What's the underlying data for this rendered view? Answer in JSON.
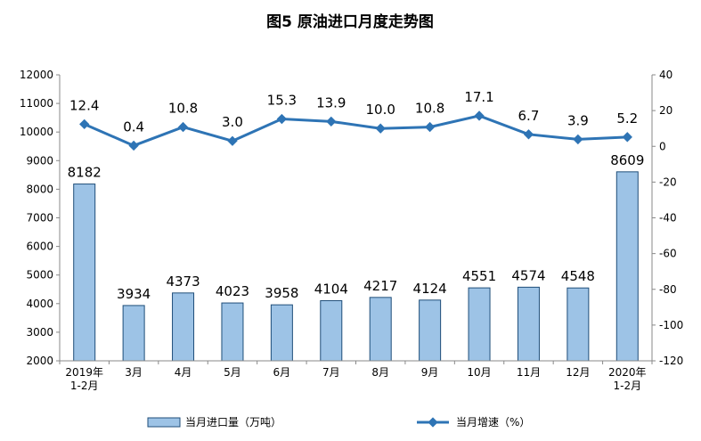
{
  "chart_data": {
    "type": "bar+line",
    "title": "图5  原油进口月度走势图",
    "categories": [
      "2019年\n1-2月",
      "3月",
      "4月",
      "5月",
      "6月",
      "7月",
      "8月",
      "9月",
      "10月",
      "11月",
      "12月",
      "2020年\n1-2月"
    ],
    "series": [
      {
        "name": "当月进口量（万吨）",
        "type": "bar",
        "axis": "left",
        "color": "#9DC3E6",
        "values": [
          8182,
          3934,
          4373,
          4023,
          3958,
          4104,
          4217,
          4124,
          4551,
          4574,
          4548,
          8609
        ]
      },
      {
        "name": "当月增速（%）",
        "type": "line",
        "axis": "right",
        "color": "#2E74B5",
        "values": [
          12.4,
          0.4,
          10.8,
          3.0,
          15.3,
          13.9,
          10.0,
          10.8,
          17.1,
          6.7,
          3.9,
          5.2
        ]
      }
    ],
    "y_left": {
      "min": 2000,
      "max": 12000,
      "step": 1000
    },
    "y_right": {
      "min": -120,
      "max": 40,
      "step": 20
    },
    "legend_position": "bottom",
    "grid": false
  }
}
